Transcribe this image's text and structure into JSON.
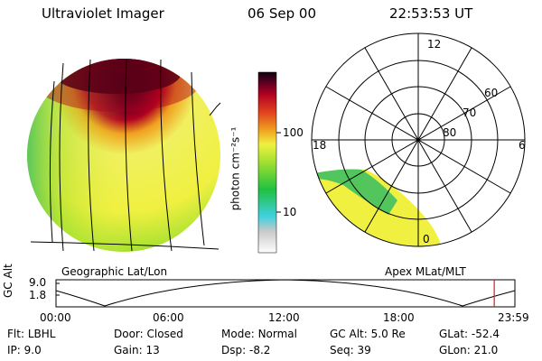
{
  "header": {
    "title": "Ultraviolet Imager",
    "date": "06 Sep 00",
    "time": "22:53:53 UT"
  },
  "left_panel": {
    "caption": "Geographic Lat/Lon"
  },
  "right_panel": {
    "caption": "Apex MLat/MLT",
    "mlt_labels": {
      "top": "12",
      "left": "18",
      "right": "6",
      "bottom": "0"
    },
    "lat_labels": [
      "60",
      "70",
      "80"
    ]
  },
  "colorbar": {
    "unit_label": "photon cm⁻²s⁻¹",
    "tick_labels": [
      "100",
      "10"
    ],
    "colors": [
      "#c8c8c8",
      "#40d0e0",
      "#20c040",
      "#a0e030",
      "#f0f040",
      "#f0a020",
      "#e04020",
      "#b00020",
      "#500020",
      "#100010"
    ]
  },
  "altitude_plot": {
    "ylabel": "GC Alt",
    "y_ticks": [
      "9.0",
      "1.8"
    ],
    "x_ticks": [
      "00:00",
      "06:00",
      "12:00",
      "18:00",
      "23:59"
    ],
    "current_time_fraction": 0.955,
    "marker_color": "#d02020"
  },
  "status": {
    "row1": [
      {
        "label": "Flt:",
        "value": "LBHL"
      },
      {
        "label": "Door:",
        "value": "Closed"
      },
      {
        "label": "Mode:",
        "value": "Normal"
      },
      {
        "label": "GC Alt:",
        "value": "5.0 Re"
      },
      {
        "label": "GLat:",
        "value": "-52.4"
      }
    ],
    "row2": [
      {
        "label": "IP:",
        "value": "9.0"
      },
      {
        "label": "Gain:",
        "value": "13"
      },
      {
        "label": "Dsp:",
        "value": "-8.2"
      },
      {
        "label": "Seq:",
        "value": "39"
      },
      {
        "label": "GLon:",
        "value": "21.0"
      }
    ]
  }
}
